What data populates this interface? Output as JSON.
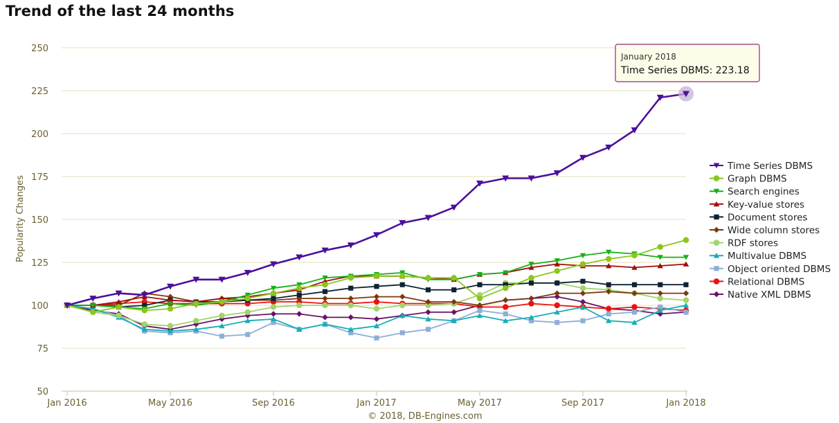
{
  "page": {
    "title": "Trend of the last 24 months"
  },
  "chart_data": {
    "type": "line",
    "title": "Trend of the last 24 months",
    "ylabel": "Popularity Changes",
    "xlabel": "",
    "ylim": [
      50,
      250
    ],
    "yticks": [
      50,
      75,
      100,
      125,
      150,
      175,
      200,
      225,
      250
    ],
    "x": [
      "2016-01",
      "2016-02",
      "2016-03",
      "2016-04",
      "2016-05",
      "2016-06",
      "2016-07",
      "2016-08",
      "2016-09",
      "2016-10",
      "2016-11",
      "2016-12",
      "2017-01",
      "2017-02",
      "2017-03",
      "2017-04",
      "2017-05",
      "2017-06",
      "2017-07",
      "2017-08",
      "2017-09",
      "2017-10",
      "2017-11",
      "2017-12",
      "2018-01"
    ],
    "xticks": [
      {
        "label": "Jan 2016",
        "index": 0
      },
      {
        "label": "May 2016",
        "index": 4
      },
      {
        "label": "Sep 2016",
        "index": 8
      },
      {
        "label": "Jan 2017",
        "index": 12
      },
      {
        "label": "May 2017",
        "index": 16
      },
      {
        "label": "Sep 2017",
        "index": 20
      },
      {
        "label": "Jan 2018",
        "index": 24
      }
    ],
    "grid": true,
    "legend_position": "right",
    "credit": "© 2018, DB-Engines.com",
    "tooltip": {
      "title": "January 2018",
      "text": "Time Series DBMS: 223.18",
      "series_index": 0,
      "point_index": 24
    },
    "series": [
      {
        "name": "Time Series DBMS",
        "color": "#4b0f9c",
        "marker": "triangle-down",
        "values": [
          100,
          104,
          107,
          106,
          111,
          115,
          115,
          119,
          124,
          128,
          132,
          135,
          141,
          148,
          151,
          157,
          171,
          174,
          174,
          177,
          186,
          192,
          202,
          221,
          223.18
        ]
      },
      {
        "name": "Graph DBMS",
        "color": "#8ac61c",
        "marker": "circle",
        "values": [
          100,
          96,
          99,
          97,
          98,
          101,
          102,
          104,
          107,
          110,
          112,
          116,
          117,
          117,
          116,
          116,
          104,
          110,
          116,
          120,
          124,
          127,
          129,
          134,
          138
        ]
      },
      {
        "name": "Search engines",
        "color": "#17b017",
        "marker": "triangle-down",
        "values": [
          100,
          100,
          99,
          98,
          101,
          100,
          102,
          106,
          110,
          112,
          116,
          117,
          118,
          119,
          115,
          115,
          118,
          119,
          124,
          126,
          129,
          131,
          130,
          128,
          128
        ]
      },
      {
        "name": "Key-value stores",
        "color": "#a10d0d",
        "marker": "triangle-up",
        "values": [
          100,
          100,
          102,
          105,
          103,
          102,
          104,
          105,
          107,
          109,
          114,
          117,
          117,
          117,
          116,
          115,
          118,
          119,
          122,
          124,
          123,
          123,
          122,
          123,
          124
        ]
      },
      {
        "name": "Document stores",
        "color": "#0f2233",
        "marker": "square",
        "values": [
          100,
          100,
          99,
          100,
          103,
          102,
          102,
          103,
          104,
          106,
          108,
          110,
          111,
          112,
          109,
          109,
          112,
          112,
          113,
          113,
          114,
          112,
          112,
          112,
          112
        ]
      },
      {
        "name": "Wide column stores",
        "color": "#7a3a12",
        "marker": "diamond",
        "values": [
          100,
          100,
          100,
          107,
          105,
          102,
          104,
          103,
          103,
          104,
          104,
          104,
          105,
          105,
          102,
          102,
          100,
          103,
          104,
          107,
          107,
          108,
          107,
          107,
          107
        ]
      },
      {
        "name": "RDF stores",
        "color": "#a2d46c",
        "marker": "circle",
        "values": [
          100,
          96,
          94,
          89,
          88,
          91,
          94,
          96,
          99,
          100,
          100,
          100,
          98,
          100,
          100,
          101,
          106,
          113,
          113,
          113,
          110,
          109,
          107,
          104,
          103
        ]
      },
      {
        "name": "Multivalue DBMS",
        "color": "#18aeb5",
        "marker": "triangle-up",
        "values": [
          100,
          98,
          93,
          86,
          85,
          86,
          88,
          91,
          92,
          86,
          89,
          86,
          88,
          94,
          92,
          91,
          94,
          91,
          93,
          96,
          99,
          91,
          90,
          97,
          100
        ]
      },
      {
        "name": "Object oriented DBMS",
        "color": "#8eaed6",
        "marker": "square",
        "values": [
          100,
          98,
          94,
          85,
          84,
          85,
          82,
          83,
          90,
          86,
          89,
          84,
          81,
          84,
          86,
          91,
          97,
          95,
          91,
          90,
          91,
          95,
          96,
          99,
          96
        ]
      },
      {
        "name": "Relational DBMS",
        "color": "#ee1111",
        "marker": "circle",
        "values": [
          100,
          100,
          101,
          102,
          101,
          101,
          101,
          101,
          102,
          102,
          101,
          101,
          102,
          101,
          101,
          101,
          99,
          99,
          101,
          100,
          99,
          98,
          99,
          98,
          97
        ]
      },
      {
        "name": "Native XML DBMS",
        "color": "#6a1268",
        "marker": "diamond",
        "values": [
          100,
          97,
          95,
          88,
          86,
          89,
          92,
          94,
          95,
          95,
          93,
          93,
          92,
          94,
          96,
          96,
          100,
          103,
          104,
          105,
          102,
          98,
          97,
          95,
          96
        ]
      }
    ]
  }
}
